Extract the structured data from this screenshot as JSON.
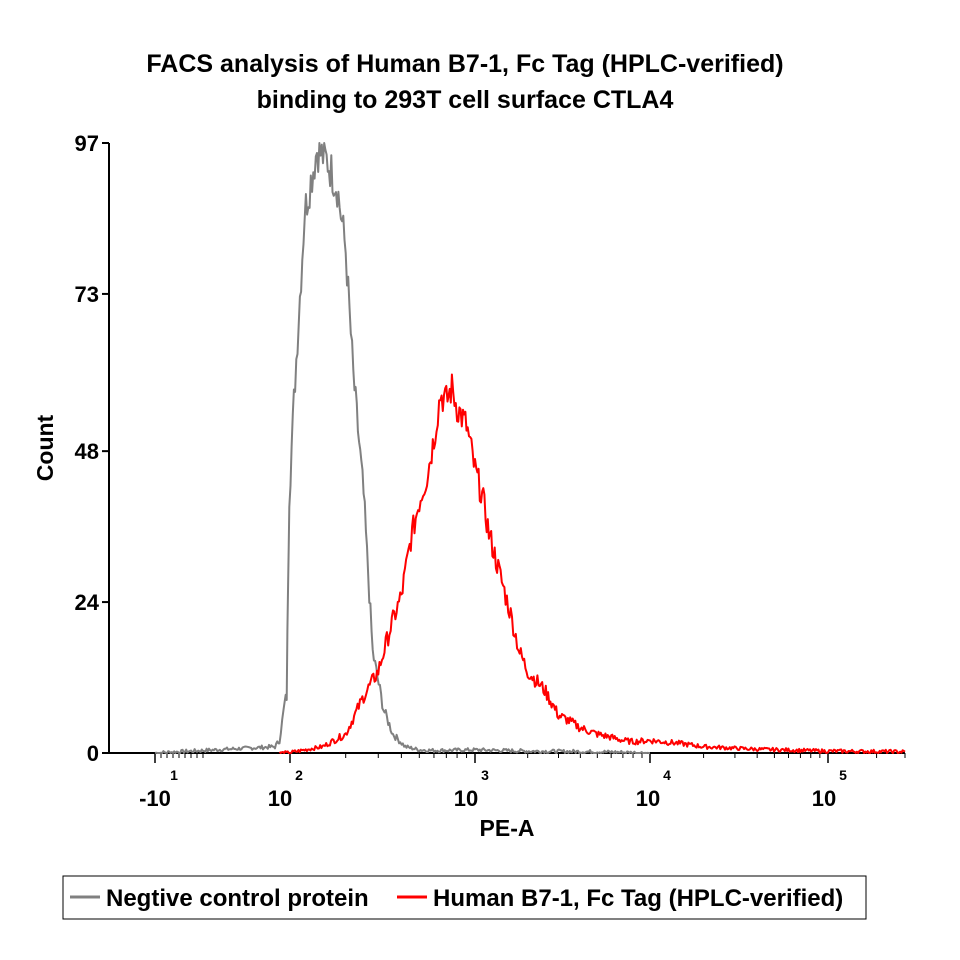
{
  "chart_data": {
    "type": "line",
    "title": [
      "FACS analysis of Human B7-1, Fc Tag (HPLC-verified)",
      "binding to 293T cell surface CTLA4"
    ],
    "xlabel": "PE-A",
    "ylabel": "Count",
    "x_scale": "log",
    "ylim": [
      0,
      97
    ],
    "yticks": [
      "0",
      "24",
      "48",
      "73",
      "97"
    ],
    "yticks_values": [
      0,
      24,
      48,
      73,
      97
    ],
    "xticks": [
      {
        "base": "-10",
        "exp": "1",
        "value": -10
      },
      {
        "base": "10",
        "exp": "2",
        "value": 100
      },
      {
        "base": "10",
        "exp": "3",
        "value": 1000
      },
      {
        "base": "10",
        "exp": "4",
        "value": 10000
      },
      {
        "base": "10",
        "exp": "5",
        "value": 100000
      }
    ],
    "legend": "bottom",
    "series": [
      {
        "name": "Negtive control protein",
        "color": "#808080",
        "x": [
          -10,
          10,
          20,
          30,
          45,
          60,
          75,
          90,
          105,
          120,
          140,
          160,
          180,
          200,
          220,
          250,
          280,
          320,
          360,
          420,
          500,
          600,
          1000,
          2000,
          5000,
          10000
        ],
        "y": [
          0,
          1,
          2,
          5,
          8,
          9,
          28,
          41,
          56,
          86,
          96,
          94,
          90,
          80,
          60,
          41,
          16,
          7,
          3,
          1,
          0.5,
          0.4,
          0.5,
          0.3,
          0.2,
          0
        ]
      },
      {
        "name": "Human B7-1, Fc Tag (HPLC-verified)",
        "color": "#ff0000",
        "x": [
          20,
          70,
          150,
          200,
          250,
          300,
          350,
          400,
          450,
          500,
          550,
          600,
          650,
          700,
          750,
          800,
          900,
          1000,
          1100,
          1200,
          1400,
          1600,
          1800,
          2000,
          2500,
          3000,
          3500,
          4000,
          5000,
          6000,
          7000,
          8000,
          10000,
          15000,
          20000,
          40000,
          100000,
          300000
        ],
        "y": [
          0,
          0,
          1,
          3,
          9,
          13,
          20,
          25,
          34,
          40,
          44,
          50,
          57,
          56,
          58,
          55,
          52,
          45,
          41,
          35,
          28,
          22,
          16,
          13,
          10,
          6,
          5,
          4,
          3,
          2.5,
          2,
          1.8,
          2,
          1.5,
          1,
          0.6,
          0.3,
          0.2
        ]
      }
    ]
  }
}
